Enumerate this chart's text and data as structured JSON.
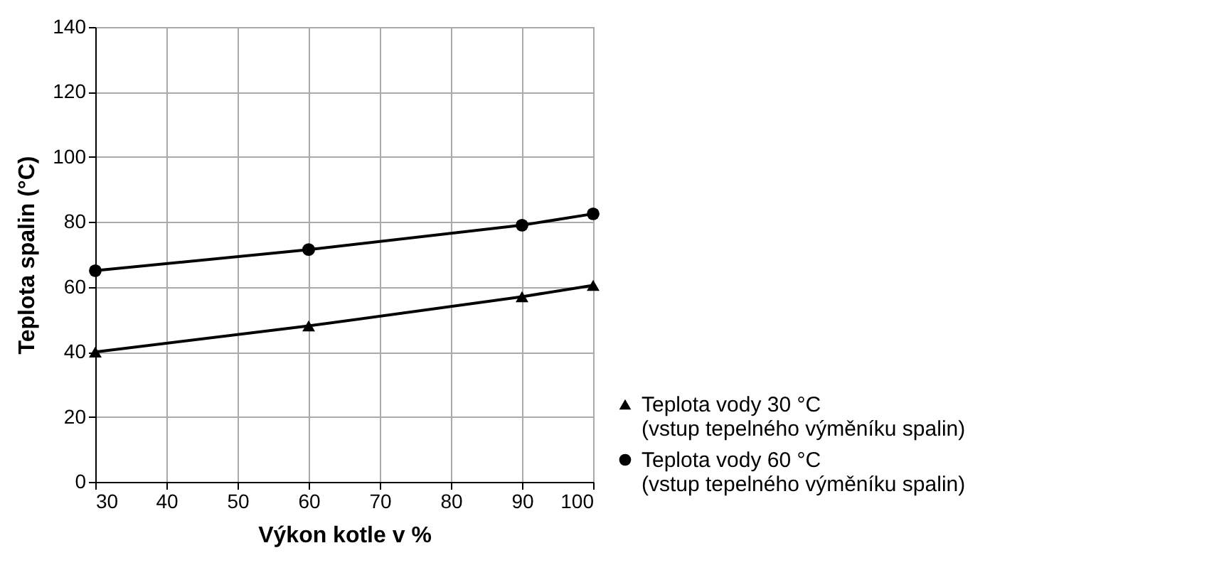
{
  "chart_data": {
    "type": "line",
    "xlabel": "Výkon kotle v %",
    "ylabel": "Teplota spalin (°C)",
    "x": [
      30,
      60,
      90,
      100
    ],
    "series": [
      {
        "name": "Teplota vody 30 °C\n(vstup tepelného výměníku spalin)",
        "color": "#000000",
        "marker": "triangle",
        "values": [
          40,
          48,
          57,
          60.5
        ]
      },
      {
        "name": "Teplota vody 60 °C\n(vstup tepelného výměníku spalin)",
        "color": "#000000",
        "marker": "circle",
        "values": [
          65,
          71.5,
          79,
          82.5
        ]
      }
    ],
    "xlim": [
      30,
      100
    ],
    "xticks": [
      30,
      40,
      50,
      60,
      70,
      80,
      90,
      100
    ],
    "ylim": [
      0,
      140
    ],
    "yticks": [
      0,
      20,
      40,
      60,
      80,
      100,
      120,
      140
    ],
    "grid": true,
    "legend": "bottom right",
    "line_style": "solid"
  }
}
